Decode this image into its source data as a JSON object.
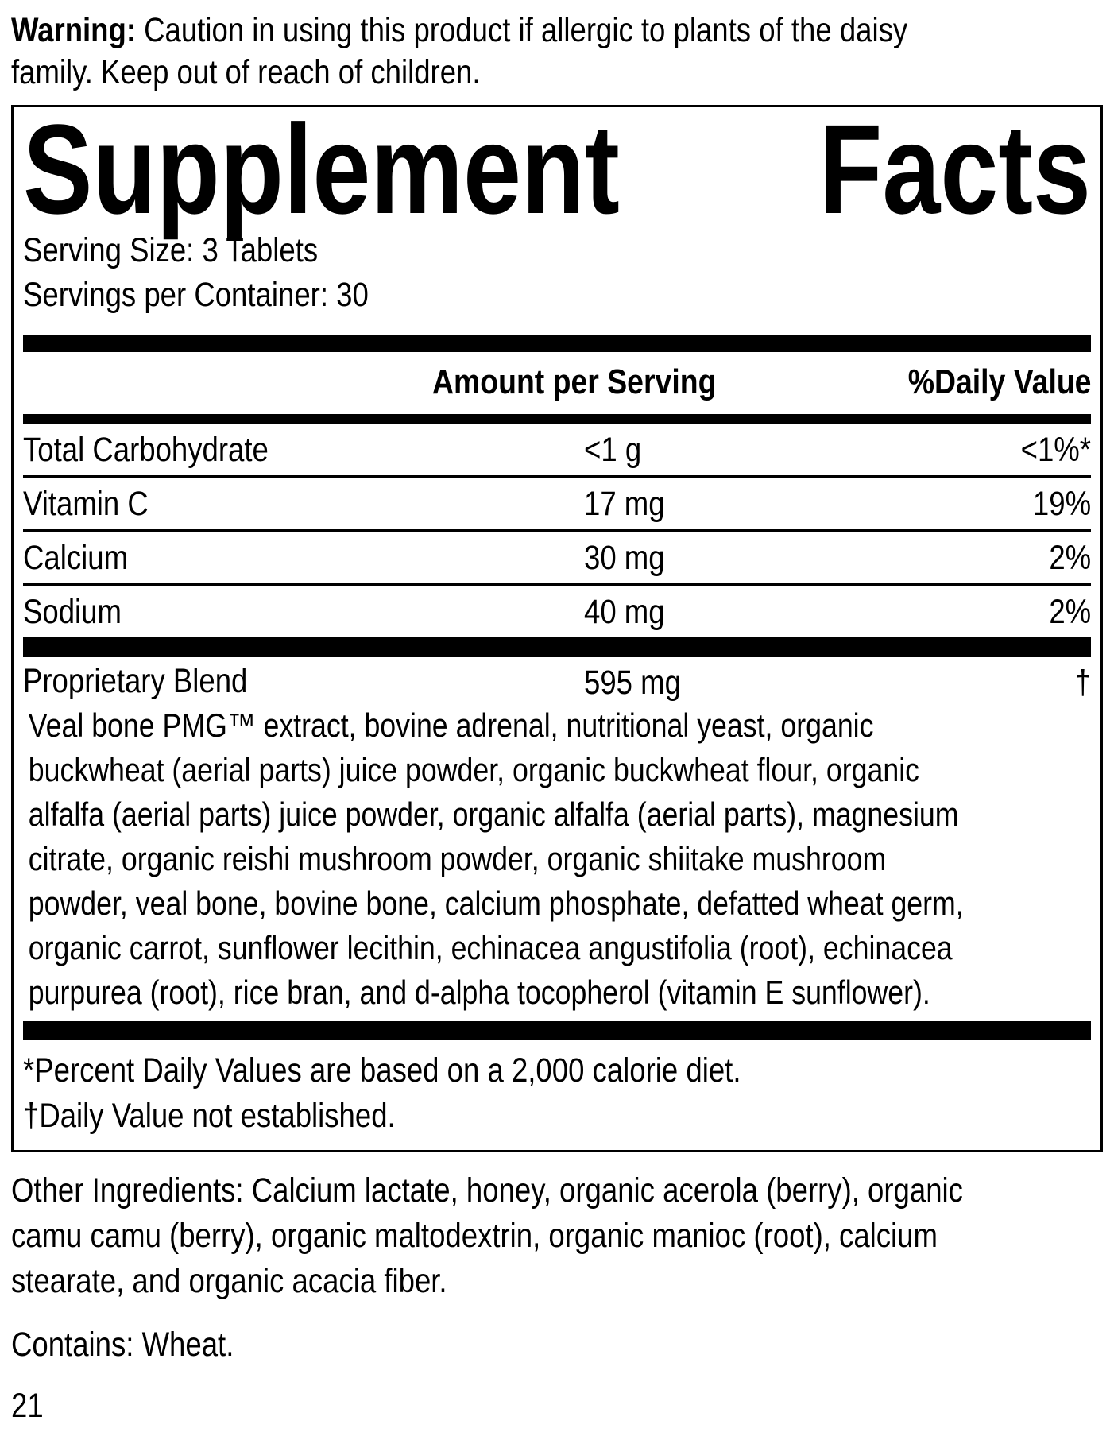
{
  "warning": {
    "label": "Warning:",
    "text": "Caution in using this product if allergic to plants of the daisy\nfamily. Keep out of reach of children."
  },
  "panel": {
    "title": {
      "word1": "Supplement",
      "word2": "Facts"
    },
    "serving_size": "Serving Size: 3 Tablets",
    "servings_per_container": "Servings per Container: 30",
    "columns": {
      "amount": "Amount per Serving",
      "daily_value": "%Daily Value"
    },
    "nutrients": [
      {
        "name": "Total Carbohydrate",
        "amount": "<1 g",
        "dv": "<1%*"
      },
      {
        "name": "Vitamin C",
        "amount": "17 mg",
        "dv": "19%"
      },
      {
        "name": "Calcium",
        "amount": "30 mg",
        "dv": "2%"
      },
      {
        "name": "Sodium",
        "amount": "40 mg",
        "dv": "2%"
      }
    ],
    "blend": {
      "name": "Proprietary Blend",
      "amount": "595 mg",
      "dv": "†",
      "description": "Veal bone PMG™ extract, bovine adrenal, nutritional yeast, organic\nbuckwheat (aerial parts) juice powder, organic buckwheat flour, organic\nalfalfa (aerial parts) juice powder, organic alfalfa (aerial parts), magnesium\ncitrate, organic reishi mushroom powder, organic shiitake mushroom\npowder, veal bone, bovine bone, calcium phosphate, defatted wheat germ,\norganic carrot, sunflower lecithin, echinacea angustifolia (root), echinacea\npurpurea (root), rice bran, and d-alpha tocopherol (vitamin E sunflower)."
    },
    "footnotes": [
      "*Percent Daily Values are based on a 2,000 calorie diet.",
      "†Daily Value not established."
    ]
  },
  "other_ingredients": "Other Ingredients: Calcium lactate, honey, organic acerola (berry), organic\ncamu camu (berry), organic maltodextrin, organic manioc (root), calcium\nstearate, and organic acacia fiber.",
  "contains": "Contains: Wheat.",
  "page_number": "21",
  "colors": {
    "ink": "#000000",
    "background": "#ffffff"
  }
}
